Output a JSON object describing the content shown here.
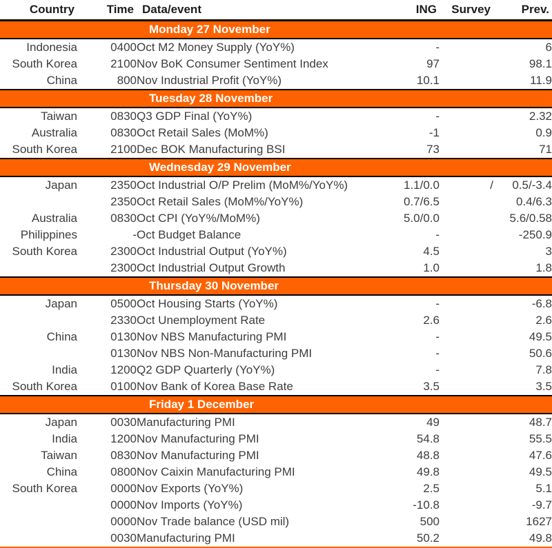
{
  "accent_color": "#FF6200",
  "rule_color": "#000000",
  "header": {
    "columns": [
      "Country",
      "Time",
      "Data/event",
      "ING",
      "Survey",
      "Prev."
    ]
  },
  "sections": [
    {
      "title": "Monday 27 November",
      "rows": [
        {
          "country": "Indonesia",
          "time": "0400",
          "event": "Oct M2 Money Supply (YoY%)",
          "ing": "-",
          "survey": "",
          "prev": "6"
        },
        {
          "country": "South Korea",
          "time": "2100",
          "event": "Nov BoK Consumer Sentiment Index",
          "ing": "97",
          "survey": "",
          "prev": "98.1"
        },
        {
          "country": "China",
          "time": "800",
          "event": "Nov Industrial Profit (YoY%)",
          "ing": "10.1",
          "survey": "",
          "prev": "11.9"
        }
      ]
    },
    {
      "title": "Tuesday 28 November",
      "rows": [
        {
          "country": "Taiwan",
          "time": "0830",
          "event": "Q3 GDP Final (YoY%)",
          "ing": "-",
          "survey": "",
          "prev": "2.32"
        },
        {
          "country": "Australia",
          "time": "0830",
          "event": "Oct Retail Sales (MoM%)",
          "ing": "-1",
          "survey": "",
          "prev": "0.9"
        },
        {
          "country": "South Korea",
          "time": "2100",
          "event": "Dec BOK Manufacturing BSI",
          "ing": "73",
          "survey": "",
          "prev": "71"
        }
      ]
    },
    {
      "title": "Wednesday 29 November",
      "rows": [
        {
          "country": "Japan",
          "time": "2350",
          "event": "Oct Industrial O/P Prelim (MoM%/YoY%)",
          "ing": "1.1/0.0",
          "survey": "/",
          "prev": "0.5/-3.4"
        },
        {
          "country": "",
          "time": "2350",
          "event": "Oct Retail Sales (MoM%/YoY%)",
          "ing": "0.7/6.5",
          "survey": "",
          "prev": "0.4/6.3"
        },
        {
          "country": "Australia",
          "time": "0830",
          "event": "Oct CPI (YoY%/MoM%)",
          "ing": "5.0/0.0",
          "survey": "",
          "prev": "5.6/0.58"
        },
        {
          "country": "Philippines",
          "time": "-",
          "event": "Oct Budget Balance",
          "ing": "-",
          "survey": "",
          "prev": "-250.9"
        },
        {
          "country": "South Korea",
          "time": "2300",
          "event": "Oct Industrial Output (YoY%)",
          "ing": "4.5",
          "survey": "",
          "prev": "3"
        },
        {
          "country": "",
          "time": "2300",
          "event": "Oct Industrial Output Growth",
          "ing": "1.0",
          "survey": "",
          "prev": "1.8"
        }
      ]
    },
    {
      "title": "Thursday 30 November",
      "rows": [
        {
          "country": "Japan",
          "time": "0500",
          "event": "Oct Housing Starts (YoY%)",
          "ing": "-",
          "survey": "",
          "prev": "-6.8"
        },
        {
          "country": "",
          "time": "2330",
          "event": "Oct Unemployment Rate",
          "ing": "2.6",
          "survey": "",
          "prev": "2.6"
        },
        {
          "country": "China",
          "time": "0130",
          "event": "Nov NBS Manufacturing PMI",
          "ing": "-",
          "survey": "",
          "prev": "49.5"
        },
        {
          "country": "",
          "time": "0130",
          "event": "Nov NBS Non-Manufacturing PMI",
          "ing": "-",
          "survey": "",
          "prev": "50.6"
        },
        {
          "country": "India",
          "time": "1200",
          "event": "Q2 GDP Quarterly (YoY%)",
          "ing": "-",
          "survey": "",
          "prev": "7.8"
        },
        {
          "country": "South Korea",
          "time": "0100",
          "event": "Nov Bank of Korea Base Rate",
          "ing": "3.5",
          "survey": "",
          "prev": "3.5"
        }
      ]
    },
    {
      "title": "Friday 1 December",
      "rows": [
        {
          "country": "Japan",
          "time": "0030",
          "event": "Manufacturing PMI",
          "ing": "49",
          "survey": "",
          "prev": "48.7"
        },
        {
          "country": "India",
          "time": "1200",
          "event": "Nov Manufacturing PMI",
          "ing": "54.8",
          "survey": "",
          "prev": "55.5"
        },
        {
          "country": "Taiwan",
          "time": "0830",
          "event": "Nov Manufacturing PMI",
          "ing": "48.8",
          "survey": "",
          "prev": "47.6"
        },
        {
          "country": "China",
          "time": "0800",
          "event": "Nov Caixin Manufacturing PMI",
          "ing": "49.8",
          "survey": "",
          "prev": "49.5"
        },
        {
          "country": "South Korea",
          "time": "0000",
          "event": "Nov Exports (YoY%)",
          "ing": "2.5",
          "survey": "",
          "prev": "5.1"
        },
        {
          "country": "",
          "time": "0000",
          "event": "Nov Imports (YoY%)",
          "ing": "-10.8",
          "survey": "",
          "prev": "-9.7"
        },
        {
          "country": "",
          "time": "0000",
          "event": "Nov Trade balance (USD mil)",
          "ing": "500",
          "survey": "",
          "prev": "1627"
        },
        {
          "country": "",
          "time": "0030",
          "event": "Manufacturing PMI",
          "ing": "50.2",
          "survey": "",
          "prev": "49.8"
        }
      ]
    }
  ]
}
